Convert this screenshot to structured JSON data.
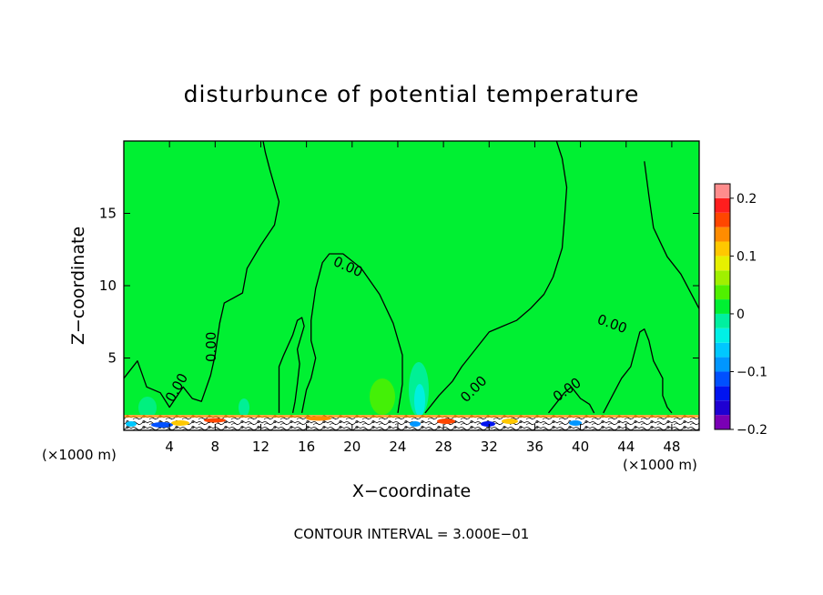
{
  "chart_data": {
    "type": "heatmap",
    "title": "disturbunce of potential temperature",
    "xlabel": "X−coordinate",
    "ylabel": "Z−coordinate",
    "x_unit_label": "(×1000 m)",
    "x_unit_label_right": "(×1000 m)",
    "xlim": [
      0,
      50.4
    ],
    "ylim": [
      0,
      20
    ],
    "x_ticks": [
      4,
      8,
      12,
      16,
      20,
      24,
      28,
      32,
      36,
      40,
      44,
      48
    ],
    "x_tick_labels": [
      "4",
      "8",
      "12",
      "16",
      "20",
      "24",
      "28",
      "32",
      "36",
      "40",
      "44",
      "48"
    ],
    "y_ticks": [
      5,
      10,
      15
    ],
    "y_tick_labels": [
      "5",
      "10",
      "15"
    ],
    "contour_interval_text": "CONTOUR INTERVAL = 3.000E−01",
    "contour_label": "0.00",
    "colorbar": {
      "min": -0.2,
      "max": 0.2,
      "tick_values": [
        0.2,
        0.1,
        0,
        -0.1,
        -0.2
      ],
      "tick_labels": [
        "0.2",
        "0.1",
        "0",
        "−0.1",
        "−0.2"
      ],
      "levels": [
        {
          "from": -0.2,
          "to": -0.175,
          "color": "#7a00b5"
        },
        {
          "from": -0.175,
          "to": -0.15,
          "color": "#1e00d2"
        },
        {
          "from": -0.15,
          "to": -0.125,
          "color": "#0014f0"
        },
        {
          "from": -0.125,
          "to": -0.1,
          "color": "#0050ff"
        },
        {
          "from": -0.1,
          "to": -0.075,
          "color": "#0096ff"
        },
        {
          "from": -0.075,
          "to": -0.05,
          "color": "#00c8ff"
        },
        {
          "from": -0.05,
          "to": -0.025,
          "color": "#00f0e6"
        },
        {
          "from": -0.025,
          "to": 0,
          "color": "#00f0a0"
        },
        {
          "from": 0,
          "to": 0.025,
          "color": "#00f032"
        },
        {
          "from": 0.025,
          "to": 0.05,
          "color": "#50f000"
        },
        {
          "from": 0.05,
          "to": 0.075,
          "color": "#a0f000"
        },
        {
          "from": 0.075,
          "to": 0.1,
          "color": "#e6f000"
        },
        {
          "from": 0.1,
          "to": 0.125,
          "color": "#ffc800"
        },
        {
          "from": 0.125,
          "to": 0.15,
          "color": "#ff8c00"
        },
        {
          "from": 0.15,
          "to": 0.175,
          "color": "#ff4600"
        },
        {
          "from": 0.175,
          "to": 0.2,
          "color": "#ff1e1e"
        },
        {
          "from": 0.2,
          "to": 0.225,
          "color": "#ff8c8c"
        }
      ]
    },
    "background_color": "#00f032",
    "contour_0": [
      [
        [
          0,
          3.6
        ],
        [
          1.2,
          4.8
        ],
        [
          2.0,
          3.0
        ],
        [
          3.2,
          2.6
        ],
        [
          4.0,
          1.6
        ],
        [
          5.2,
          3.0
        ],
        [
          6.0,
          2.2
        ],
        [
          6.8,
          2.0
        ],
        [
          7.6,
          3.8
        ],
        [
          8.0,
          5.2
        ],
        [
          8.4,
          7.4
        ],
        [
          8.8,
          8.8
        ],
        [
          10.4,
          9.5
        ],
        [
          10.8,
          11.2
        ],
        [
          12.0,
          12.8
        ],
        [
          13.2,
          14.2
        ],
        [
          13.6,
          15.8
        ],
        [
          12.8,
          18.0
        ],
        [
          12.4,
          19.2
        ],
        [
          12.2,
          20.0
        ]
      ],
      [
        [
          45.6,
          18.6
        ],
        [
          46.0,
          16.2
        ],
        [
          46.4,
          14.0
        ],
        [
          47.6,
          12.0
        ],
        [
          48.8,
          10.8
        ],
        [
          49.6,
          9.6
        ],
        [
          50.4,
          8.4
        ]
      ],
      [
        [
          13.6,
          1.2
        ],
        [
          13.6,
          2.2
        ],
        [
          13.6,
          4.4
        ],
        [
          14.0,
          5.2
        ],
        [
          14.8,
          6.6
        ],
        [
          15.2,
          7.6
        ],
        [
          15.6,
          7.8
        ],
        [
          15.8,
          7.2
        ],
        [
          15.2,
          5.6
        ],
        [
          15.4,
          4.6
        ],
        [
          15.2,
          3.2
        ],
        [
          15.0,
          2.0
        ],
        [
          14.8,
          1.2
        ]
      ],
      [
        [
          15.6,
          1.2
        ],
        [
          16.0,
          2.8
        ],
        [
          16.4,
          3.6
        ],
        [
          16.8,
          5.0
        ],
        [
          16.4,
          6.2
        ],
        [
          16.4,
          7.6
        ],
        [
          16.8,
          9.8
        ],
        [
          17.4,
          11.6
        ],
        [
          18.0,
          12.2
        ],
        [
          19.2,
          12.2
        ],
        [
          20.8,
          11.2
        ],
        [
          22.4,
          9.4
        ],
        [
          23.6,
          7.4
        ],
        [
          24.4,
          5.2
        ],
        [
          24.4,
          3.2
        ],
        [
          24.0,
          1.2
        ]
      ],
      [
        [
          26.4,
          1.2
        ],
        [
          27.6,
          2.4
        ],
        [
          28.8,
          3.4
        ],
        [
          29.6,
          4.4
        ],
        [
          30.8,
          5.6
        ],
        [
          32.0,
          6.8
        ],
        [
          33.2,
          7.2
        ],
        [
          34.4,
          7.6
        ],
        [
          35.6,
          8.4
        ],
        [
          36.8,
          9.4
        ],
        [
          37.6,
          10.6
        ],
        [
          38.4,
          12.6
        ],
        [
          38.6,
          14.6
        ],
        [
          38.8,
          16.8
        ],
        [
          38.4,
          18.8
        ],
        [
          37.9,
          20.0
        ]
      ],
      [
        [
          37.2,
          1.2
        ],
        [
          38.0,
          2.0
        ],
        [
          38.6,
          2.6
        ],
        [
          39.2,
          3.0
        ],
        [
          40.0,
          2.2
        ],
        [
          40.8,
          1.8
        ],
        [
          41.2,
          1.2
        ]
      ],
      [
        [
          42.0,
          1.2
        ],
        [
          42.8,
          2.4
        ],
        [
          43.6,
          3.6
        ],
        [
          44.4,
          4.4
        ],
        [
          44.8,
          5.6
        ],
        [
          45.2,
          6.8
        ],
        [
          45.6,
          7.0
        ],
        [
          46.0,
          6.2
        ],
        [
          46.4,
          4.8
        ],
        [
          47.2,
          3.6
        ],
        [
          47.2,
          2.4
        ],
        [
          47.6,
          1.6
        ],
        [
          48.0,
          1.2
        ]
      ]
    ]
  }
}
